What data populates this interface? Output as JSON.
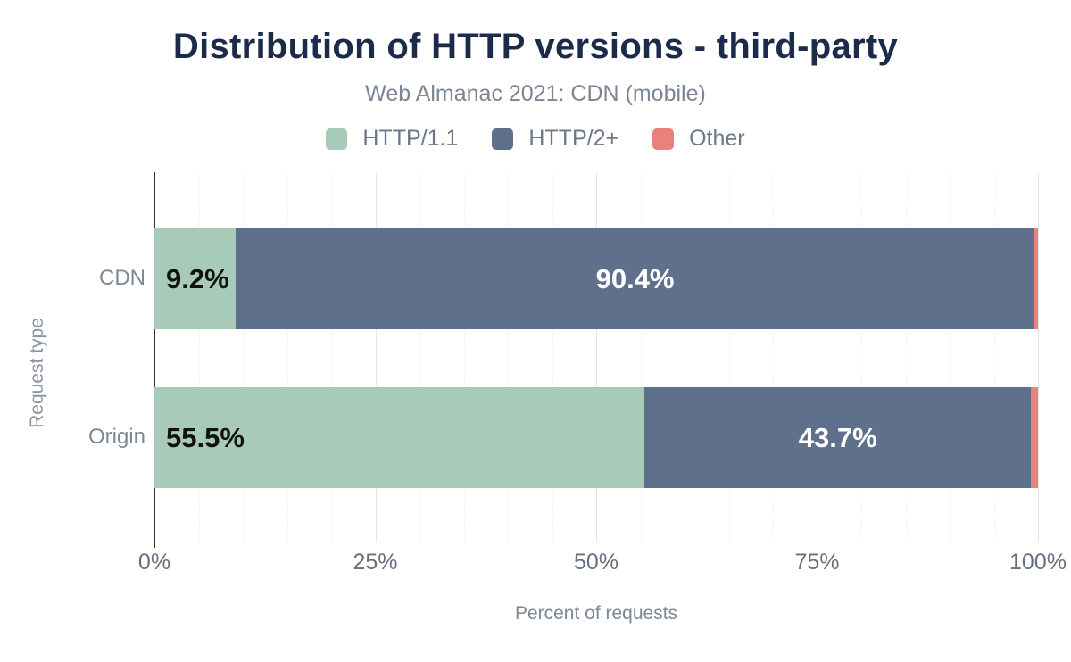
{
  "chart_data": {
    "type": "bar",
    "orientation": "horizontal",
    "stacked": true,
    "title": "Distribution of HTTP versions - third-party",
    "subtitle": "Web Almanac 2021: CDN (mobile)",
    "categories": [
      "CDN",
      "Origin"
    ],
    "series": [
      {
        "name": "HTTP/1.1",
        "color": "#a8cab8",
        "values": [
          9.2,
          55.5
        ]
      },
      {
        "name": "HTTP/2+",
        "color": "#5f708d",
        "values": [
          90.4,
          43.7
        ]
      },
      {
        "name": "Other",
        "color": "#e8827a",
        "values": [
          0.4,
          0.8
        ]
      }
    ],
    "bar_labels": [
      [
        "9.2%",
        "90.4%",
        ""
      ],
      [
        "55.5%",
        "43.7%",
        ""
      ]
    ],
    "xlabel": "Percent of requests",
    "ylabel": "Request type",
    "x_ticks": [
      "0%",
      "25%",
      "50%",
      "75%",
      "100%"
    ],
    "xlim": [
      0,
      100
    ],
    "grid": {
      "minor_step": 5,
      "major_step": 25,
      "minor_style": "dotted",
      "major_style": "solid"
    },
    "legend_position": "top",
    "colors": {
      "title": "#1c2b4a",
      "subtitle": "#7b8593",
      "axis_line": "#333333",
      "tick_text": "#67707e",
      "label_on_light": "#111111",
      "label_on_dark": "#ffffff"
    }
  }
}
